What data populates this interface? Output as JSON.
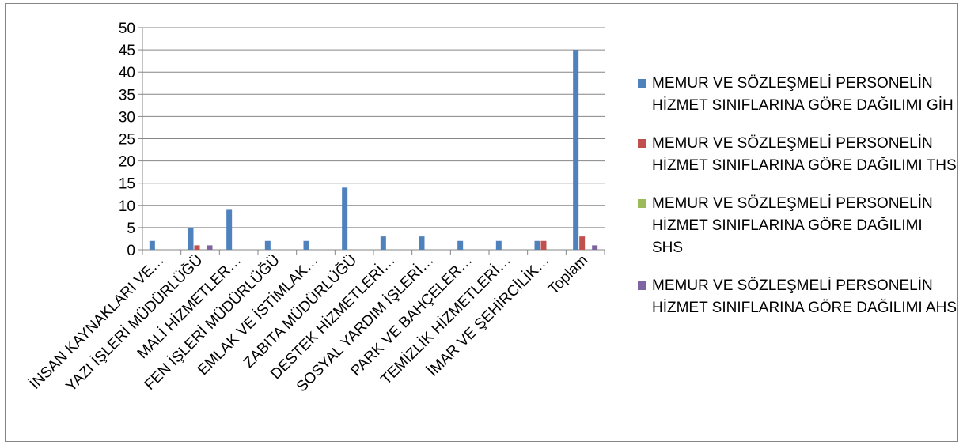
{
  "chart_data": {
    "type": "bar",
    "title": "",
    "xlabel": "",
    "ylabel": "",
    "ylim": [
      0,
      50
    ],
    "yticks": [
      0,
      5,
      10,
      15,
      20,
      25,
      30,
      35,
      40,
      45,
      50
    ],
    "grid": true,
    "legend_position": "right",
    "categories": [
      "İNSAN KAYNAKLARI VE…",
      "YAZI İŞLERİ MÜDÜRLÜĞÜ",
      "MALİ HİZMETLER…",
      "FEN İŞLERİ MÜDÜRLÜĞÜ",
      "EMLAK VE İSTİMLAK…",
      "ZABITA MÜDÜRLÜĞÜ",
      "DESTEK HİZMETLERİ…",
      "SOSYAL YARDIM İŞLERİ…",
      "PARK VE BAHÇELER…",
      "TEMİZLİK HİZMETLERİ…",
      "İMAR VE ŞEHİRCİLİK…",
      "Toplam"
    ],
    "series": [
      {
        "name": "MEMUR VE SÖZLEŞMELİ PERSONELİN HİZMET SINIFLARINA GÖRE DAĞILIMI GİH",
        "color": "#4f81bd",
        "values": [
          2,
          5,
          9,
          2,
          2,
          14,
          3,
          3,
          2,
          2,
          2,
          45
        ]
      },
      {
        "name": "MEMUR VE SÖZLEŞMELİ PERSONELİN HİZMET SINIFLARINA GÖRE DAĞILIMI THS",
        "color": "#c0504d",
        "values": [
          0,
          1,
          0,
          0,
          0,
          0,
          0,
          0,
          0,
          0,
          2,
          3
        ]
      },
      {
        "name": "MEMUR VE SÖZLEŞMELİ PERSONELİN HİZMET SINIFLARINA GÖRE DAĞILIMI SHS",
        "color": "#9bbb59",
        "values": [
          0,
          0,
          0,
          0,
          0,
          0,
          0,
          0,
          0,
          0,
          0,
          0
        ]
      },
      {
        "name": "MEMUR VE SÖZLEŞMELİ PERSONELİN HİZMET SINIFLARINA GÖRE DAĞILIMI AHS",
        "color": "#8064a2",
        "values": [
          0,
          1,
          0,
          0,
          0,
          0,
          0,
          0,
          0,
          0,
          0,
          1
        ]
      }
    ]
  }
}
